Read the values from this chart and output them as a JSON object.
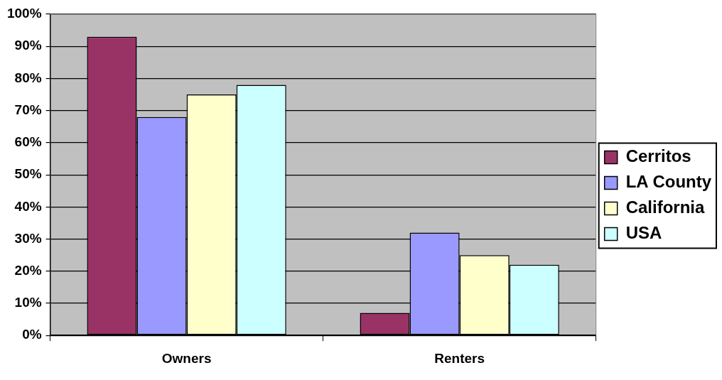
{
  "chart_data": {
    "type": "bar",
    "categories": [
      "Owners",
      "Renters"
    ],
    "series": [
      {
        "name": "Cerritos",
        "color": "#993366",
        "values": [
          93,
          7
        ]
      },
      {
        "name": "LA County",
        "color": "#9999ff",
        "values": [
          68,
          32
        ]
      },
      {
        "name": "California",
        "color": "#ffffcc",
        "values": [
          75,
          25
        ]
      },
      {
        "name": "USA",
        "color": "#ccffff",
        "values": [
          78,
          22
        ]
      }
    ],
    "ylim": [
      0,
      100
    ],
    "yticks": [
      {
        "value": 0,
        "label": "0%"
      },
      {
        "value": 10,
        "label": "10%"
      },
      {
        "value": 20,
        "label": "20%"
      },
      {
        "value": 30,
        "label": "30%"
      },
      {
        "value": 40,
        "label": "40%"
      },
      {
        "value": 50,
        "label": "50%"
      },
      {
        "value": 60,
        "label": "60%"
      },
      {
        "value": 70,
        "label": "70%"
      },
      {
        "value": 80,
        "label": "80%"
      },
      {
        "value": 90,
        "label": "90%"
      },
      {
        "value": 100,
        "label": "100%"
      }
    ],
    "grid": "y",
    "legend": "right"
  }
}
